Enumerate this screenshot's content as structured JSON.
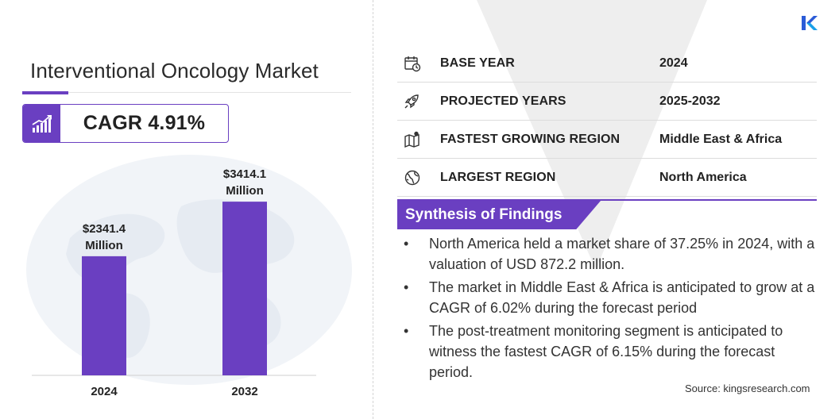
{
  "title": "Interventional Oncology Market",
  "cagr": {
    "label": "CAGR 4.91%",
    "icon": "growth-chart-icon"
  },
  "colors": {
    "accent": "#6a3fc1",
    "bar": "#6a3fc1",
    "background": "#ffffff"
  },
  "chart_data": {
    "type": "bar",
    "categories": [
      "2024",
      "2032"
    ],
    "values": [
      2341.4,
      3414.1
    ],
    "value_labels": [
      "$2341.4\nMillion",
      "$3414.1\nMillion"
    ],
    "title": "",
    "xlabel": "",
    "ylabel": "",
    "ylim": [
      0,
      4040
    ],
    "grid": false,
    "legend": "none"
  },
  "summary_rows": [
    {
      "icon": "calendar-icon",
      "label": "BASE YEAR",
      "value": "2024"
    },
    {
      "icon": "rocket-icon",
      "label": "PROJECTED YEARS",
      "value": "2025-2032"
    },
    {
      "icon": "map-region-icon",
      "label": "FASTEST GROWING REGION",
      "value": "Middle East & Africa"
    },
    {
      "icon": "globe-icon",
      "label": "LARGEST REGION",
      "value": "North America"
    }
  ],
  "synthesis": {
    "title": "Synthesis of Findings",
    "bullet": "•",
    "items": [
      "North America held a market share of 37.25% in 2024, with a valuation of USD 872.2 million.",
      "The market in Middle East & Africa is anticipated to grow at a CAGR of 6.02% during the forecast period",
      "The post-treatment monitoring segment is anticipated to witness the fastest CAGR of 6.15% during the forecast period."
    ]
  },
  "source": "Source:  kingsresearch.com",
  "logo": "kings-research-logo"
}
